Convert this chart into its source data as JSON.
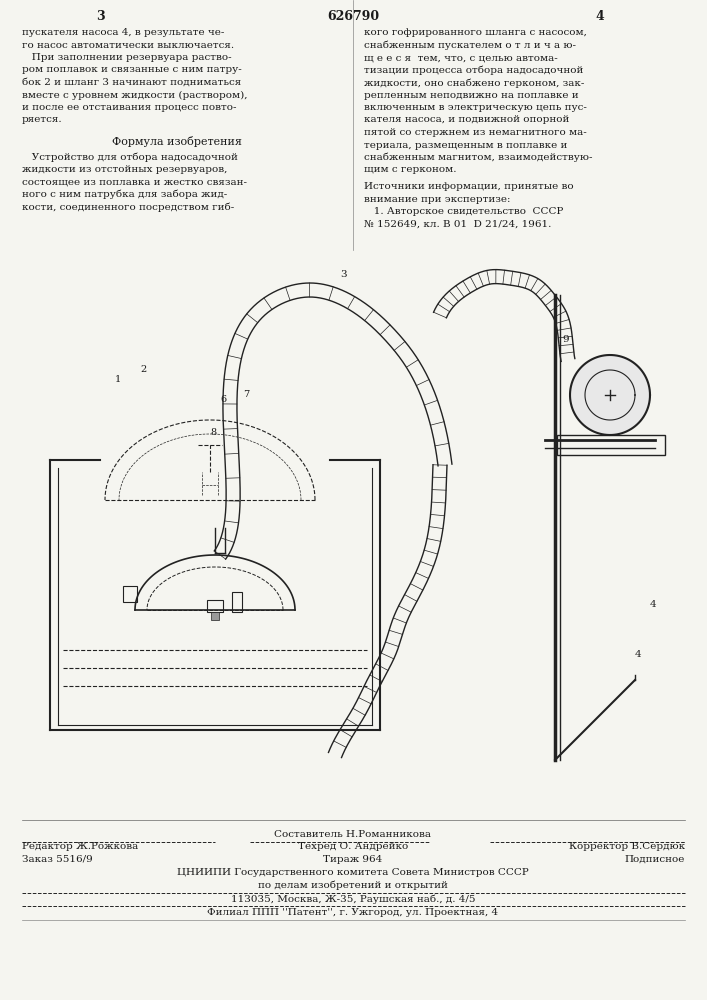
{
  "page_numbers": [
    "3",
    "626790",
    "4"
  ],
  "left_column_text": [
    "пускателя насоса 4, в результате че-",
    "го насос автоматически выключается.",
    "   При заполнении резервуара раство-",
    "ром поплавок и связанные с ним патру-",
    "бок 2 и шланг 3 начинают подниматься",
    "вместе с уровнем жидкости (раствором),",
    "и после ее отстаивания процесс повто-",
    "ряется."
  ],
  "formula_title": "Формула изобретения",
  "formula_text": [
    "   Устройство для отбора надосадочной",
    "жидкости из отстойных резервуаров,",
    "состоящее из поплавка и жестко связан-",
    "ного с ним патрубка для забора жид-",
    "кости, соединенного посредством гиб-"
  ],
  "right_column_text": [
    "кого гофрированного шланга с насосом,",
    "снабженным пускателем о т л и ч а ю-",
    "щ е е с я  тем, что, с целью автома-",
    "тизации процесса отбора надосадочной",
    "жидкости, оно снабжено герконом, зак-",
    "репленным неподвижно на поплавке и",
    "включенным в электрическую цепь пус-",
    "кателя насоса, и подвижной опорной",
    "пятой со стержнем из немагнитного ма-",
    "териала, размещенным в поплавке и",
    "снабженным магнитом, взаимодействую-",
    "щим с герконом."
  ],
  "sources_title": "Источники информации, принятые во",
  "sources_text": [
    "внимание при экспертизе:",
    "   1. Авторское свидетельство  СССР",
    "№ 152649, кл. В 01  D 21/24, 1961."
  ],
  "footer_line1_left": "Редактор Ж.Рожкова",
  "footer_line1_mid": "Составитель Н.Романникова",
  "footer_line1_right": "",
  "footer_line2_left": "",
  "footer_line2_mid": "Техред О. Андрейко",
  "footer_line2_right": "Корректор В.Сердюк",
  "footer_line3_left": "Заказ 5516/9",
  "footer_line3_mid": "Тираж 964",
  "footer_line3_right": "Подписное",
  "footer_line4": "ЦНИИПИ Государственного комитета Совета Министров СССР",
  "footer_line5": "по делам изобретений и открытий",
  "footer_line6": "113035, Москва, Ж-35, Раушская наб., д. 4/5",
  "footer_line7": "Филиал ППП ''Патент'', г. Ужгород, ул. Проектная, 4",
  "bg_color": "#f5f5f0",
  "text_color": "#1a1a1a",
  "diagram_color": "#222222"
}
